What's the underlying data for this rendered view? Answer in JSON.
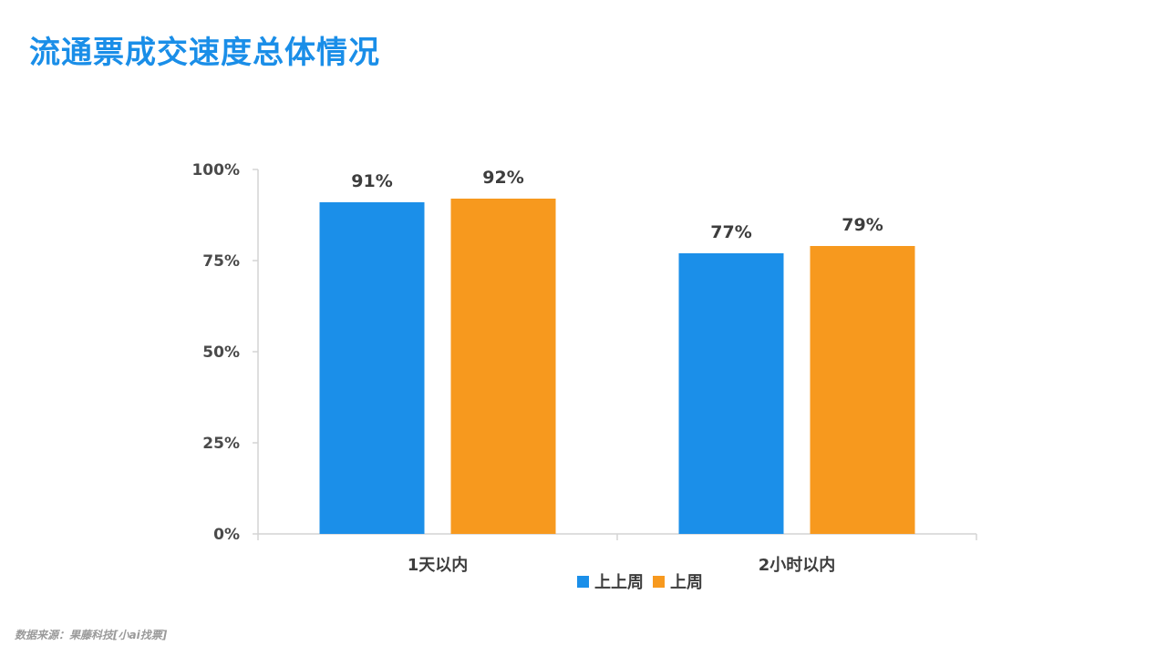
{
  "page": {
    "title": "流通票成交速度总体情况",
    "source": "数据来源：果藤科技[小ai找票]"
  },
  "colors": {
    "title": "#1a8ee8",
    "series_1": "#1b8fe9",
    "series_2": "#f7991e",
    "axis": "#d4d4d4",
    "text": "#3d3d3d"
  },
  "chart_data": {
    "type": "bar",
    "title": "",
    "xlabel": "",
    "ylabel": "",
    "categories": [
      "1天以内",
      "2小时以内"
    ],
    "series": [
      {
        "name": "上上周",
        "values": [
          91,
          77
        ],
        "labels": [
          "91%",
          "77%"
        ],
        "color": "#1b8fe9"
      },
      {
        "name": "上周",
        "values": [
          92,
          79
        ],
        "labels": [
          "92%",
          "79%"
        ],
        "color": "#f7991e"
      }
    ],
    "ylim": [
      0,
      100
    ],
    "yticks": [
      0,
      25,
      50,
      75,
      100
    ],
    "ytick_labels": [
      "0%",
      "25%",
      "50%",
      "75%",
      "100%"
    ],
    "grid": false,
    "legend_position": "bottom"
  }
}
